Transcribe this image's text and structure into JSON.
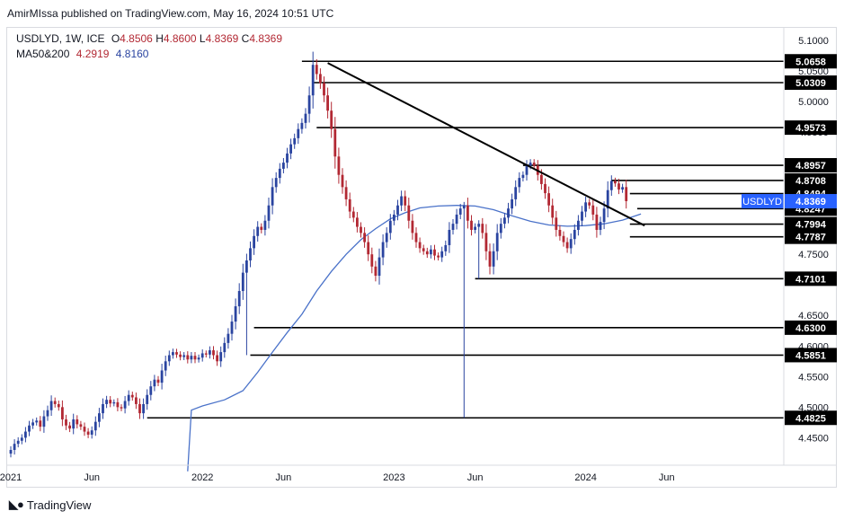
{
  "header": {
    "published": "AmirMIssa published on TradingView.com, May 16, 2024 10:51 UTC",
    "symbol_line": "USDLYD, 1W, ICE",
    "ohlc": {
      "o_label": "O",
      "o": "4.8506",
      "h_label": "H",
      "h": "4.8600",
      "l_label": "L",
      "l": "4.8369",
      "c_label": "C",
      "c": "4.8369"
    },
    "ma_label": "MA50&200",
    "ma50": "4.2919",
    "ma200": "4.8160"
  },
  "branding": {
    "logo_text": "TradingView"
  },
  "colors": {
    "up": "#2a44a0",
    "down": "#b22833",
    "ma": "#4a72c9",
    "level": "#000000",
    "badge": "#2962ff"
  },
  "chart_data": {
    "type": "candlestick",
    "title": "USDLYD, 1W, ICE",
    "ylim": [
      4.405,
      5.122
    ],
    "y_ticks": [
      "5.1000",
      "5.0500",
      "5.0000",
      "4.9500",
      "4.8500",
      "4.7500",
      "4.6500",
      "4.6000",
      "4.5500",
      "4.5000",
      "4.4500"
    ],
    "x_ticks": [
      {
        "label": "2021",
        "idx": 0
      },
      {
        "label": "Jun",
        "idx": 22
      },
      {
        "label": "2022",
        "idx": 52
      },
      {
        "label": "Jun",
        "idx": 74
      },
      {
        "label": "2023",
        "idx": 104
      },
      {
        "label": "Jun",
        "idx": 126
      },
      {
        "label": "2024",
        "idx": 156
      },
      {
        "label": "Jun",
        "idx": 178
      }
    ],
    "closes": [
      4.43,
      4.44,
      4.445,
      4.45,
      4.46,
      4.47,
      4.475,
      4.478,
      4.468,
      4.485,
      4.495,
      4.51,
      4.505,
      4.5,
      4.48,
      4.47,
      4.465,
      4.48,
      4.472,
      4.468,
      4.46,
      4.455,
      4.462,
      4.476,
      4.49,
      4.505,
      4.512,
      4.506,
      4.508,
      4.5,
      4.498,
      4.51,
      4.52,
      4.516,
      4.505,
      4.49,
      4.505,
      4.52,
      4.534,
      4.545,
      4.54,
      4.56,
      4.575,
      4.585,
      4.59,
      4.586,
      4.582,
      4.585,
      4.578,
      4.584,
      4.578,
      4.581,
      4.588,
      4.586,
      4.593,
      4.585,
      4.575,
      4.59,
      4.605,
      4.62,
      4.64,
      4.665,
      4.69,
      4.72,
      4.74,
      4.76,
      4.78,
      4.795,
      4.79,
      4.805,
      4.83,
      4.86,
      4.875,
      4.89,
      4.9,
      4.915,
      4.93,
      4.94,
      4.955,
      4.965,
      4.98,
      5.01,
      5.06,
      5.045,
      5.03,
      5.01,
      4.985,
      4.955,
      4.91,
      4.88,
      4.86,
      4.84,
      4.82,
      4.81,
      4.795,
      4.785,
      4.77,
      4.75,
      4.73,
      4.715,
      4.745,
      4.77,
      4.785,
      4.805,
      4.815,
      4.83,
      4.845,
      4.83,
      4.805,
      4.785,
      4.77,
      4.76,
      4.755,
      4.75,
      4.758,
      4.748,
      4.745,
      4.755,
      4.765,
      4.79,
      4.8,
      4.815,
      4.825,
      4.83,
      4.805,
      4.79,
      4.795,
      4.8,
      4.785,
      4.755,
      4.73,
      4.755,
      4.785,
      4.8,
      4.81,
      4.825,
      4.84,
      4.86,
      4.875,
      4.88,
      4.895,
      4.9,
      4.895,
      4.88,
      4.865,
      4.85,
      4.83,
      4.81,
      4.79,
      4.78,
      4.77,
      4.76,
      4.775,
      4.79,
      4.805,
      4.82,
      4.835,
      4.83,
      4.815,
      4.79,
      4.803,
      4.825,
      4.855,
      4.87,
      4.866,
      4.856,
      4.86,
      4.837
    ],
    "levels": [
      {
        "label": "5.0658",
        "value": 5.0658,
        "from_idx": 79
      },
      {
        "label": "5.0309",
        "value": 5.0309,
        "from_idx": 82
      },
      {
        "label": "4.9573",
        "value": 4.9573,
        "from_idx": 83
      },
      {
        "label": "4.8957",
        "value": 4.8957,
        "from_idx": 139
      },
      {
        "label": "4.8708",
        "value": 4.8708,
        "from_idx": 163
      },
      {
        "label": "4.8494",
        "value": 4.8494,
        "from_idx": 168
      },
      {
        "label": "4.8247",
        "value": 4.8247,
        "from_idx": 170
      },
      {
        "label": "4.7994",
        "value": 4.7994,
        "from_idx": 168
      },
      {
        "label": "4.7787",
        "value": 4.7787,
        "from_idx": 168
      },
      {
        "label": "4.7101",
        "value": 4.7101,
        "from_idx": 126
      },
      {
        "label": "4.6300",
        "value": 4.63,
        "from_idx": 66
      },
      {
        "label": "4.5851",
        "value": 4.5851,
        "from_idx": 65
      },
      {
        "label": "4.4825",
        "value": 4.4825,
        "from_idx": 37
      }
    ],
    "trendline": {
      "from": {
        "idx": 86,
        "value": 5.063
      },
      "to": {
        "idx": 172,
        "value": 4.797
      }
    },
    "current": {
      "label": "USDLYD",
      "value_label": "4.8369",
      "value": 4.8369
    },
    "ma200_series": [
      {
        "idx": 48,
        "value": 4.395
      },
      {
        "idx": 49,
        "value": 4.495
      },
      {
        "idx": 52,
        "value": 4.502
      },
      {
        "idx": 58,
        "value": 4.512
      },
      {
        "idx": 63,
        "value": 4.527
      },
      {
        "idx": 67,
        "value": 4.557
      },
      {
        "idx": 71,
        "value": 4.59
      },
      {
        "idx": 75,
        "value": 4.622
      },
      {
        "idx": 79,
        "value": 4.652
      },
      {
        "idx": 83,
        "value": 4.69
      },
      {
        "idx": 87,
        "value": 4.722
      },
      {
        "idx": 91,
        "value": 4.75
      },
      {
        "idx": 95,
        "value": 4.774
      },
      {
        "idx": 99,
        "value": 4.792
      },
      {
        "idx": 103,
        "value": 4.808
      },
      {
        "idx": 107,
        "value": 4.818
      },
      {
        "idx": 111,
        "value": 4.826
      },
      {
        "idx": 116,
        "value": 4.829
      },
      {
        "idx": 121,
        "value": 4.83
      },
      {
        "idx": 126,
        "value": 4.829
      },
      {
        "idx": 131,
        "value": 4.823
      },
      {
        "idx": 136,
        "value": 4.813
      },
      {
        "idx": 141,
        "value": 4.804
      },
      {
        "idx": 146,
        "value": 4.798
      },
      {
        "idx": 151,
        "value": 4.796
      },
      {
        "idx": 156,
        "value": 4.797
      },
      {
        "idx": 161,
        "value": 4.8
      },
      {
        "idx": 166,
        "value": 4.806
      },
      {
        "idx": 171,
        "value": 4.816
      }
    ]
  }
}
